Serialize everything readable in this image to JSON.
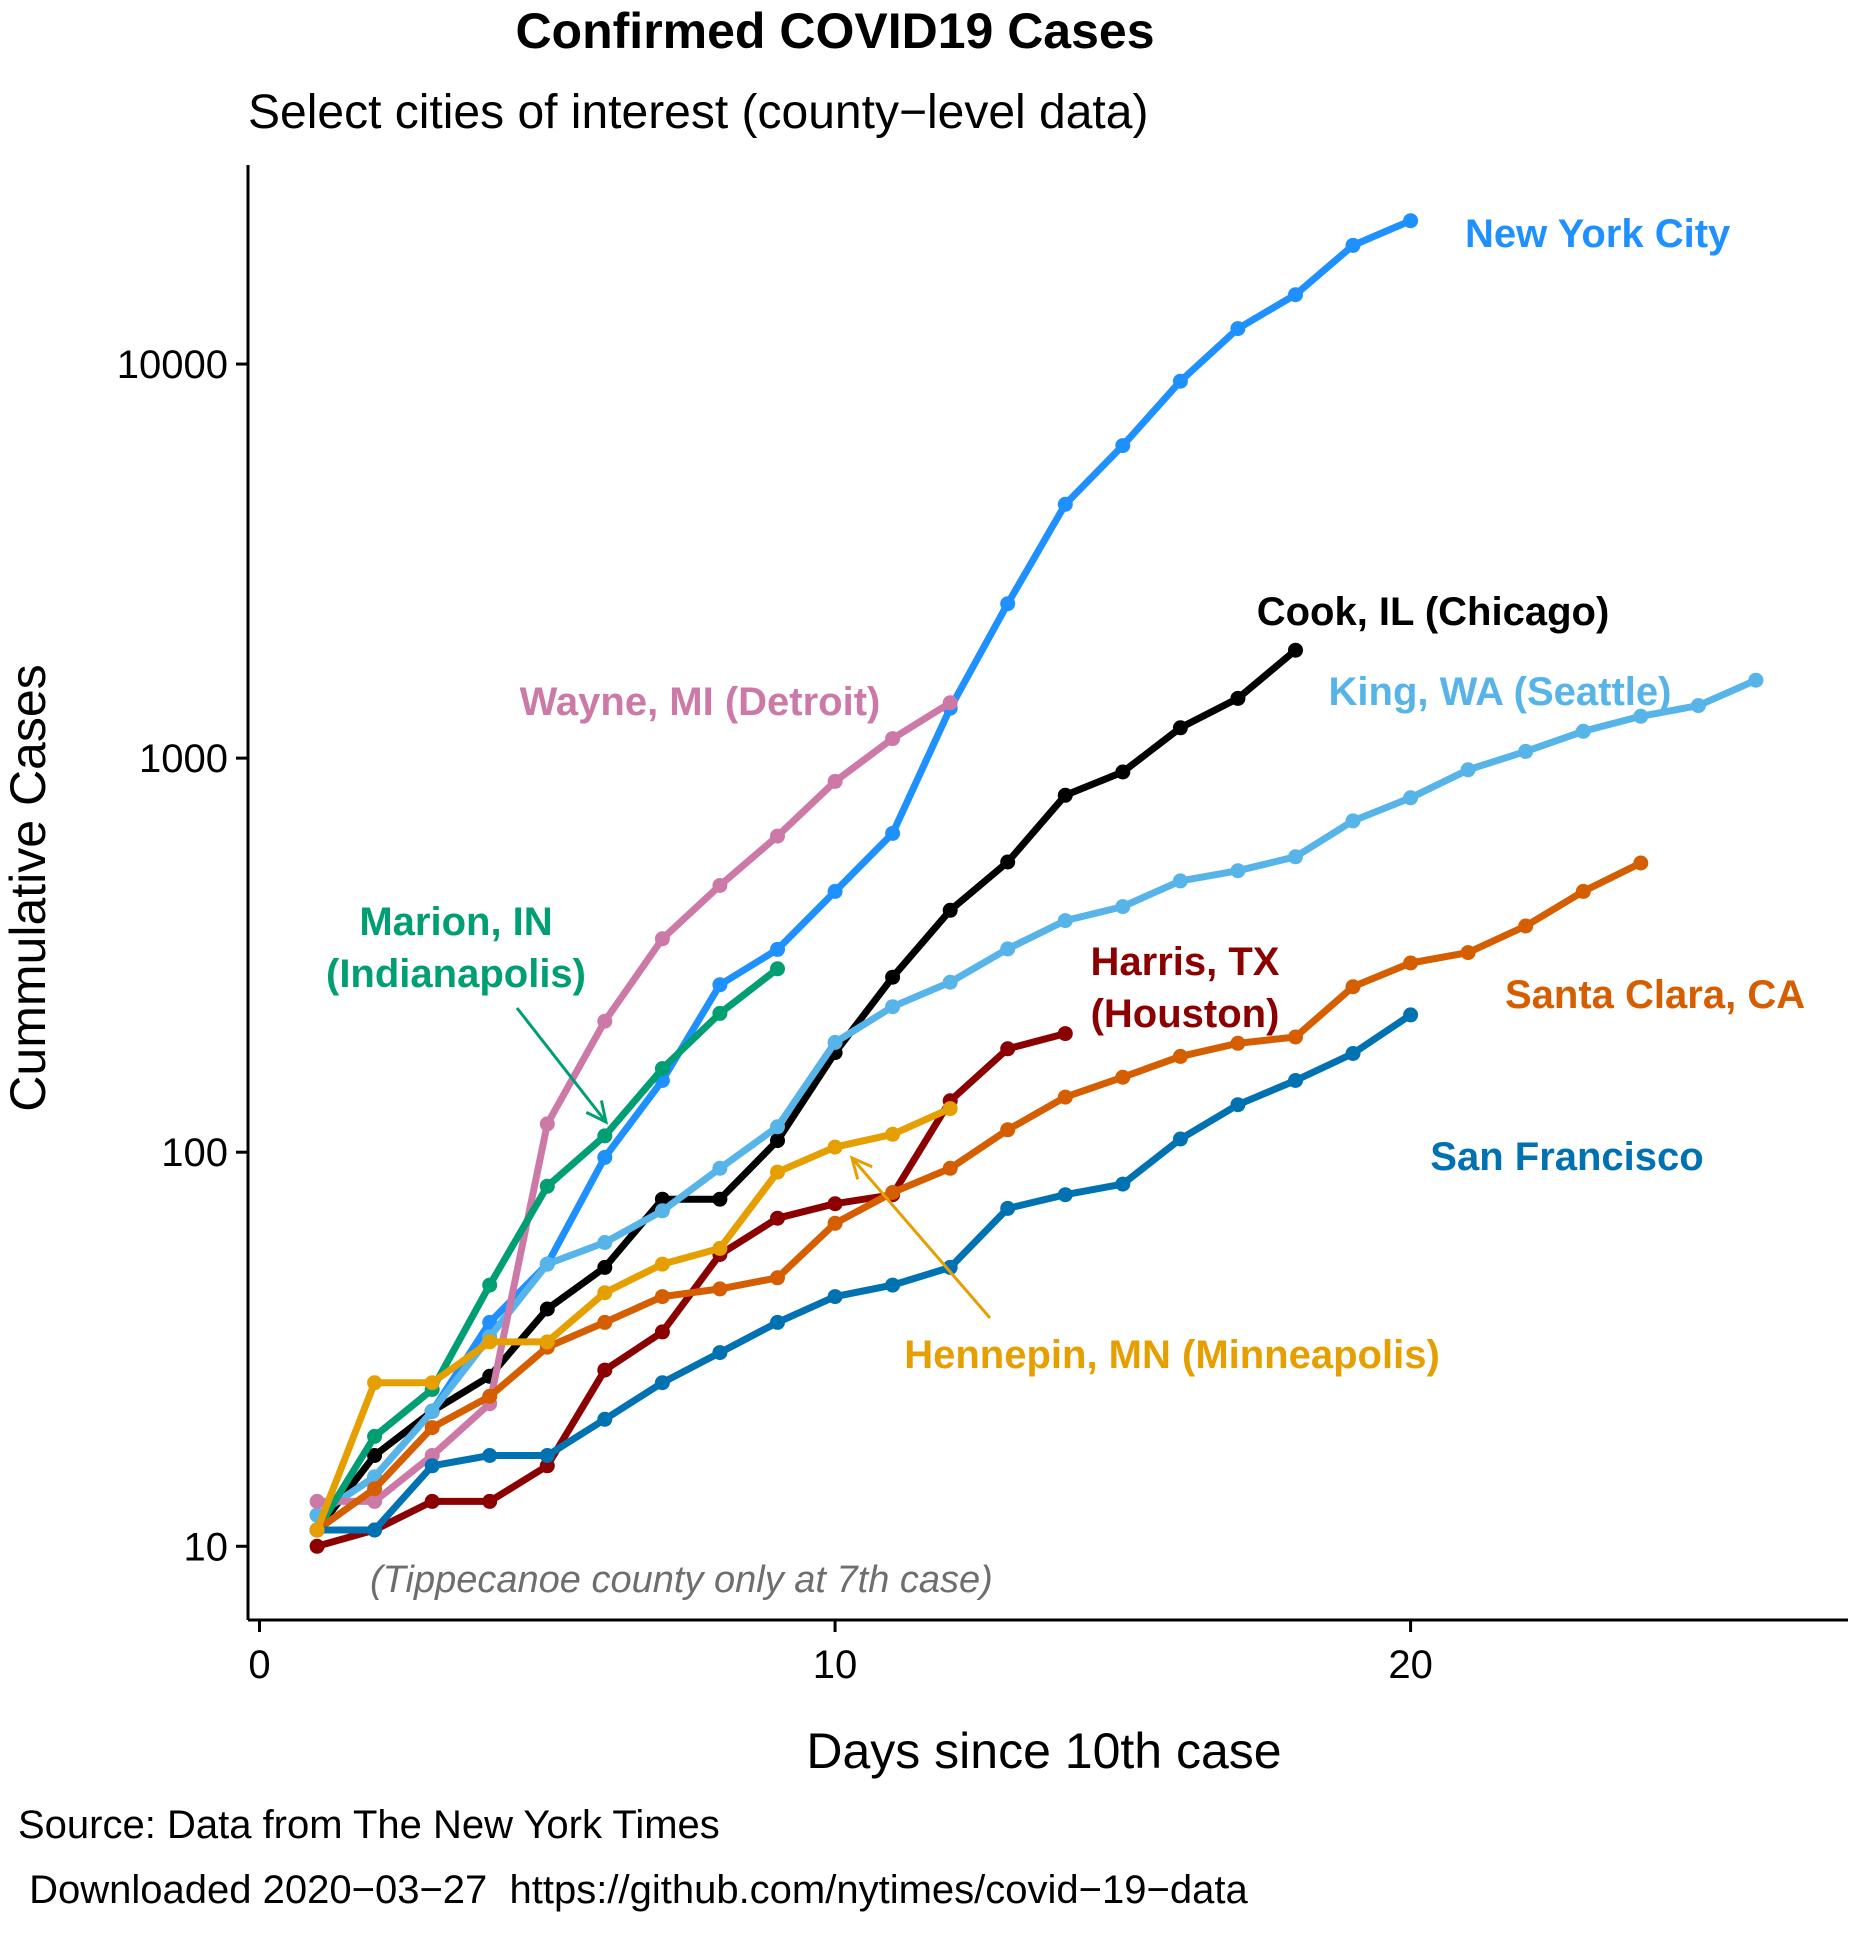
{
  "chart_data": {
    "type": "line",
    "title": "Confirmed COVID19 Cases",
    "subtitle": "Select cities of interest (county−level data)",
    "xlabel": "Days since 10th case",
    "ylabel": "Cummulative Cases",
    "yscale": "log",
    "xlim": [
      -0.2,
      27.6
    ],
    "ylim": [
      6.5,
      32000
    ],
    "xticks": [
      0,
      10,
      20
    ],
    "yticks": [
      10,
      100,
      1000,
      10000
    ],
    "grid": false,
    "legend": "none (direct labels)",
    "annotation": "(Tippecanoe county only at 7th case)",
    "caption_lines": [
      "Source: Data from The New York Times",
      " Downloaded 2020−03−27  https://github.com/nytimes/covid−19−data"
    ],
    "series": [
      {
        "name": "New York City",
        "label": "New York City",
        "color": "#1E90FF",
        "x": [
          1,
          2,
          3,
          4,
          5,
          6,
          7,
          8,
          9,
          10,
          11,
          12,
          13,
          14,
          15,
          16,
          17,
          18,
          19,
          20
        ],
        "y": [
          12,
          15,
          22,
          37,
          52,
          97,
          152,
          266,
          327,
          459,
          644,
          1339,
          2466,
          4408,
          6211,
          9045,
          12305,
          15000,
          20000,
          23112
        ]
      },
      {
        "name": "Cook, IL (Chicago)",
        "label": "Cook, IL (Chicago)",
        "color": "#000000",
        "x": [
          1,
          2,
          3,
          4,
          5,
          6,
          7,
          8,
          9,
          10,
          11,
          12,
          13,
          14,
          15,
          16,
          17,
          18
        ],
        "y": [
          11,
          17,
          22,
          27,
          40,
          51,
          76,
          76,
          107,
          179,
          278,
          411,
          545,
          805,
          922,
          1194,
          1418,
          1879
        ]
      },
      {
        "name": "King, WA (Seattle)",
        "label": "King, WA (Seattle)",
        "color": "#56B4E9",
        "x": [
          1,
          2,
          3,
          4,
          5,
          6,
          7,
          8,
          9,
          10,
          11,
          12,
          13,
          14,
          15,
          16,
          17,
          18,
          19,
          20,
          21,
          22,
          23,
          24,
          25,
          26
        ],
        "y": [
          12,
          15,
          22,
          34,
          52,
          59,
          71,
          91,
          116,
          190,
          234,
          270,
          328,
          387,
          420,
          488,
          518,
          562,
          693,
          793,
          934,
          1040,
          1170,
          1277,
          1359,
          1577
        ]
      },
      {
        "name": "Wayne, MI (Detroit)",
        "label": "Wayne, MI (Detroit)",
        "color": "#CC79A7",
        "x": [
          1,
          2,
          3,
          4,
          5,
          6,
          7,
          8,
          9,
          10,
          11,
          12
        ],
        "y": [
          13,
          13,
          17,
          23,
          118,
          215,
          348,
          475,
          634,
          873,
          1121,
          1382
        ]
      },
      {
        "name": "Marion, IN (Indianapolis)",
        "label": "Marion, IN\n(Indianapolis)",
        "color": "#009E73",
        "x": [
          1,
          2,
          3,
          4,
          5,
          6,
          7,
          8,
          9
        ],
        "y": [
          11,
          19,
          25,
          46,
          82,
          110,
          163,
          225,
          292
        ]
      },
      {
        "name": "Harris, TX (Houston)",
        "label": "Harris, TX\n(Houston)",
        "color": "#8B0000",
        "x": [
          1,
          2,
          3,
          4,
          5,
          6,
          7,
          8,
          9,
          10,
          11,
          12,
          13,
          14
        ],
        "y": [
          10,
          11,
          13,
          13,
          16,
          28,
          35,
          55,
          68,
          74,
          78,
          135,
          183,
          200
        ]
      },
      {
        "name": "Santa Clara, CA",
        "label": "Santa Clara, CA",
        "color": "#D55E00",
        "x": [
          1,
          2,
          3,
          4,
          5,
          6,
          7,
          8,
          9,
          10,
          11,
          12,
          13,
          14,
          15,
          16,
          17,
          18,
          19,
          20,
          21,
          22,
          23,
          24
        ],
        "y": [
          11,
          14,
          20,
          24,
          32,
          37,
          43,
          45,
          48,
          66,
          79,
          91,
          114,
          138,
          155,
          175,
          189,
          196,
          263,
          302,
          321,
          375,
          459,
          542
        ]
      },
      {
        "name": "San Francisco",
        "label": "San Francisco",
        "color": "#0072B2",
        "x": [
          1,
          2,
          3,
          4,
          5,
          6,
          7,
          8,
          9,
          10,
          11,
          12,
          13,
          14,
          15,
          16,
          17,
          18,
          19,
          20
        ],
        "y": [
          11,
          11,
          16,
          17,
          17,
          21,
          26,
          31,
          37,
          43,
          46,
          51,
          72,
          78,
          83,
          108,
          132,
          152,
          178,
          223
        ]
      },
      {
        "name": "Hennepin, MN (Minneapolis)",
        "label": "Hennepin, MN (Minneapolis)",
        "color": "#E69F00",
        "x": [
          1,
          2,
          3,
          4,
          5,
          6,
          7,
          8,
          9,
          10,
          11,
          12
        ],
        "y": [
          11,
          26,
          26,
          33,
          33,
          44,
          52,
          57,
          89,
          103,
          111,
          129
        ]
      }
    ]
  }
}
